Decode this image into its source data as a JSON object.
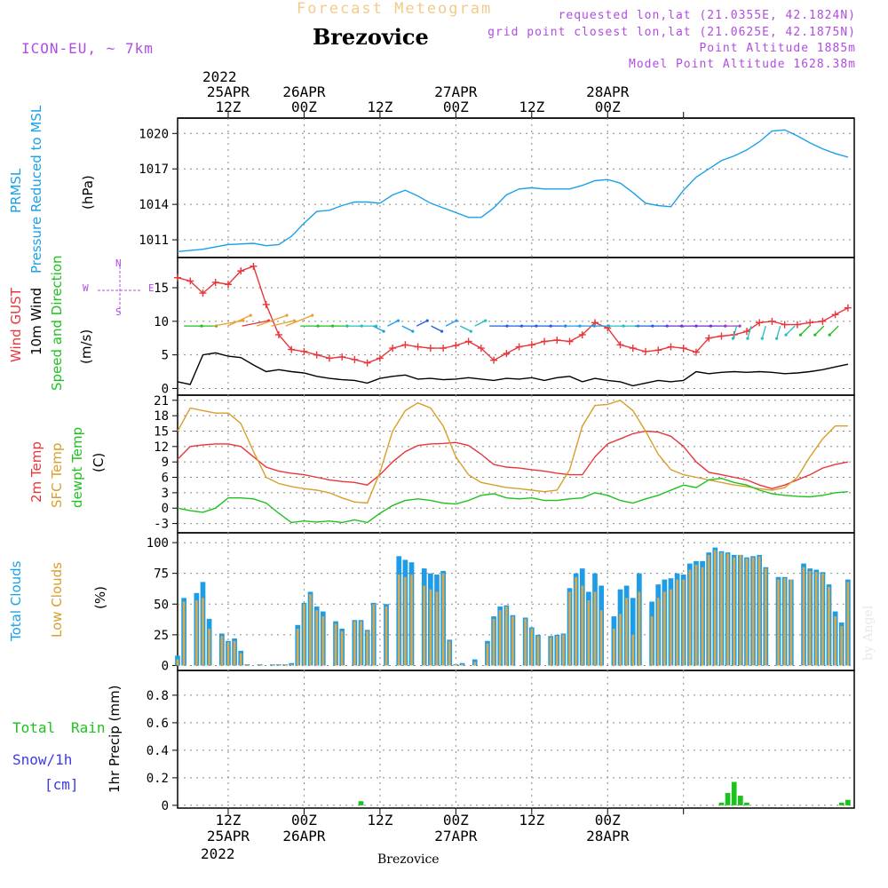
{
  "header": {
    "product": "Forecast Meteogram",
    "model": "ICON-EU, ~ 7km",
    "location": "Brezovice",
    "requested": "requested lon,lat (21.0355E, 42.1824N)",
    "grid_point": "grid point closest lon,lat (21.0625E, 42.1875N)",
    "point_altitude": "Point Altitude 1885m",
    "model_altitude": "Model Point Altitude 1628.38m",
    "watermark": "by Angel",
    "footer_location": "Brezovice"
  },
  "time_axis": {
    "top_year": "2022",
    "top_labels": [
      {
        "l1": "25APR",
        "l2": "12Z"
      },
      {
        "l1": "26APR",
        "l2": "00Z"
      },
      {
        "l1": "",
        "l2": "12Z"
      },
      {
        "l1": "27APR",
        "l2": "00Z"
      },
      {
        "l1": "",
        "l2": "12Z"
      },
      {
        "l1": "28APR",
        "l2": "00Z"
      }
    ],
    "bottom_labels": [
      {
        "l1": "12Z",
        "l2": "25APR"
      },
      {
        "l1": "00Z",
        "l2": "26APR"
      },
      {
        "l1": "12Z",
        "l2": ""
      },
      {
        "l1": "00Z",
        "l2": "27APR"
      },
      {
        "l1": "12Z",
        "l2": ""
      },
      {
        "l1": "00Z",
        "l2": "28APR"
      }
    ],
    "bottom_year": "2022"
  },
  "panels": {
    "pressure": {
      "label1": "PRMSL",
      "label2": "Pressure Reduced to MSL",
      "unit": "(hPa)"
    },
    "wind": {
      "label1": "Wind GUST",
      "label2": "10m Wind",
      "label3": "Speed and Direction",
      "unit": "(m/s)",
      "compass": "N",
      "compass_s": "S",
      "compass_w": "W",
      "compass_e": "E"
    },
    "temp": {
      "label1": "2m Temp",
      "label2": "SFC Temp",
      "label3": "dewpt Temp",
      "unit": "(C)"
    },
    "clouds": {
      "label1": "Total Clouds",
      "label2": "Low Clouds",
      "unit": "(%)"
    },
    "precip": {
      "label1": "Total",
      "label1b": "Rain",
      "label2": "Snow/1h",
      "label3": "[cm]",
      "unit": "1hr Precip (mm)"
    }
  },
  "chart_data": [
    {
      "type": "line",
      "title": "PRMSL Pressure Reduced to MSL",
      "ylabel": "(hPa)",
      "x_hours": [
        0,
        4,
        8,
        12,
        14,
        16,
        18,
        20,
        22,
        24,
        26,
        28,
        30,
        32,
        34,
        36,
        38,
        40,
        42,
        44,
        46,
        48,
        50,
        52,
        54,
        56,
        58,
        60,
        62,
        64,
        66,
        68,
        70,
        72,
        74,
        76,
        78,
        80,
        82,
        84,
        86,
        88,
        90,
        92,
        94,
        96,
        98,
        100,
        102,
        104,
        106
      ],
      "yticks": [
        1011,
        1014,
        1017,
        1020
      ],
      "ylim": [
        1009.5,
        1021.3
      ],
      "series": [
        {
          "name": "PRMSL",
          "color": "#1ba1e6",
          "values": [
            1010.0,
            1010.2,
            1010.6,
            1010.7,
            1010.5,
            1010.6,
            1011.3,
            1012.4,
            1013.4,
            1013.5,
            1013.9,
            1014.2,
            1014.2,
            1014.1,
            1014.8,
            1015.2,
            1014.7,
            1014.1,
            1013.7,
            1013.3,
            1012.9,
            1012.9,
            1013.7,
            1014.8,
            1015.3,
            1015.4,
            1015.3,
            1015.3,
            1015.3,
            1015.6,
            1016.0,
            1016.1,
            1015.8,
            1015.0,
            1014.1,
            1013.9,
            1013.8,
            1015.2,
            1016.3,
            1017.0,
            1017.7,
            1018.1,
            1018.6,
            1019.3,
            1020.2,
            1020.3,
            1019.8,
            1019.2,
            1018.7,
            1018.3,
            1018.0
          ]
        }
      ]
    },
    {
      "type": "line",
      "title": "Wind GUST / 10m Wind Speed and Direction",
      "ylabel": "(m/s)",
      "x_hours": [
        0,
        2,
        4,
        6,
        8,
        10,
        12,
        14,
        16,
        18,
        20,
        22,
        24,
        26,
        28,
        30,
        32,
        34,
        36,
        38,
        40,
        42,
        44,
        46,
        48,
        50,
        52,
        54,
        56,
        58,
        60,
        62,
        64,
        66,
        68,
        70,
        72,
        74,
        76,
        78,
        80,
        82,
        84,
        86,
        88,
        90,
        92,
        94,
        96,
        98,
        100,
        102,
        104,
        106
      ],
      "yticks": [
        0,
        5,
        10,
        15
      ],
      "ylim": [
        -1,
        19.5
      ],
      "series": [
        {
          "name": "Wind GUST",
          "color": "#e8363a",
          "values": [
            16.5,
            16.0,
            14.2,
            15.8,
            15.5,
            17.5,
            18.2,
            12.5,
            8.0,
            5.8,
            5.5,
            5.0,
            4.5,
            4.7,
            4.3,
            3.8,
            4.5,
            6.0,
            6.5,
            6.2,
            6.0,
            6.0,
            6.4,
            7.0,
            6.0,
            4.2,
            5.2,
            6.2,
            6.5,
            7.0,
            7.2,
            7.0,
            8.0,
            9.8,
            9.0,
            6.5,
            6.0,
            5.5,
            5.7,
            6.2,
            6.0,
            5.4,
            7.5,
            7.8,
            8.0,
            8.5,
            9.8,
            10.0,
            9.5,
            9.5,
            9.8,
            10.0,
            11.0,
            12.0
          ]
        },
        {
          "name": "10m Wind",
          "color": "#000000",
          "values": [
            1.0,
            0.6,
            5.0,
            5.3,
            4.8,
            4.6,
            3.5,
            2.5,
            2.8,
            2.5,
            2.3,
            1.8,
            1.5,
            1.3,
            1.2,
            0.8,
            1.5,
            1.8,
            2.0,
            1.4,
            1.5,
            1.3,
            1.4,
            1.6,
            1.4,
            1.2,
            1.5,
            1.4,
            1.6,
            1.2,
            1.6,
            1.8,
            1.0,
            1.5,
            1.2,
            1.0,
            0.4,
            0.8,
            1.2,
            1.0,
            1.2,
            2.5,
            2.2,
            2.4,
            2.5,
            2.4,
            2.5,
            2.4,
            2.2,
            2.3,
            2.5,
            2.8,
            3.2,
            3.6
          ]
        }
      ]
    },
    {
      "type": "line",
      "title": "2m Temp / SFC Temp / dewpt Temp",
      "ylabel": "(C)",
      "x_hours": [
        0,
        2,
        4,
        6,
        8,
        10,
        12,
        14,
        16,
        18,
        20,
        22,
        24,
        26,
        28,
        30,
        32,
        34,
        36,
        38,
        40,
        42,
        44,
        46,
        48,
        50,
        52,
        54,
        56,
        58,
        60,
        62,
        64,
        66,
        68,
        70,
        72,
        74,
        76,
        78,
        80,
        82,
        84,
        86,
        88,
        90,
        92,
        94,
        96,
        98,
        100,
        102,
        104,
        106
      ],
      "yticks": [
        -3,
        0,
        3,
        6,
        9,
        12,
        15,
        18,
        21
      ],
      "ylim": [
        -4.8,
        22
      ],
      "series": [
        {
          "name": "2m Temp",
          "color": "#e8363a",
          "values": [
            9.5,
            12.0,
            12.3,
            12.5,
            12.5,
            12.0,
            10.0,
            8.0,
            7.2,
            6.8,
            6.5,
            6.0,
            5.5,
            5.2,
            5.0,
            4.5,
            6.5,
            9.0,
            11.0,
            12.2,
            12.5,
            12.6,
            12.8,
            12.2,
            10.5,
            8.5,
            8.0,
            7.8,
            7.5,
            7.2,
            6.8,
            6.5,
            6.5,
            10.0,
            12.5,
            13.5,
            14.5,
            15.0,
            14.8,
            14.0,
            12.0,
            9.0,
            7.0,
            6.5,
            6.0,
            5.5,
            4.5,
            3.8,
            4.5,
            5.5,
            6.5,
            7.8,
            8.5,
            9.0
          ]
        },
        {
          "name": "SFC Temp",
          "color": "#d99e2b",
          "values": [
            15.0,
            19.5,
            19.0,
            18.5,
            18.5,
            16.5,
            11.0,
            6.0,
            4.8,
            4.2,
            3.8,
            3.5,
            3.0,
            2.0,
            1.2,
            1.0,
            7.0,
            15.0,
            19.0,
            20.5,
            19.5,
            16.0,
            10.0,
            6.5,
            5.0,
            4.5,
            4.0,
            3.8,
            3.5,
            3.2,
            3.5,
            7.5,
            16.0,
            20.0,
            20.2,
            21.0,
            19.0,
            15.0,
            10.5,
            7.5,
            6.5,
            6.0,
            5.5,
            5.0,
            4.5,
            4.2,
            3.8,
            3.5,
            4.0,
            6.0,
            10.0,
            13.5,
            16.0,
            16.0
          ]
        },
        {
          "name": "dewpt Temp",
          "color": "#1ec21e",
          "values": [
            0.0,
            -0.5,
            -0.8,
            0.0,
            2.0,
            2.0,
            1.8,
            1.0,
            -1.0,
            -2.8,
            -2.5,
            -2.7,
            -2.5,
            -2.8,
            -2.3,
            -2.8,
            -1.0,
            0.5,
            1.5,
            1.8,
            1.5,
            1.0,
            0.8,
            1.5,
            2.5,
            2.8,
            2.0,
            1.8,
            2.0,
            1.5,
            1.5,
            1.8,
            2.0,
            3.0,
            2.5,
            1.5,
            1.0,
            1.8,
            2.5,
            3.5,
            4.5,
            4.0,
            5.5,
            5.8,
            5.0,
            4.5,
            3.5,
            2.8,
            2.5,
            2.3,
            2.2,
            2.5,
            3.0,
            3.2
          ]
        }
      ]
    },
    {
      "type": "bar",
      "title": "Total Clouds / Low Clouds",
      "ylabel": "(%)",
      "x_hours": [
        0,
        1,
        3,
        4,
        5,
        7,
        8,
        9,
        10,
        11,
        13,
        15,
        16,
        17,
        18,
        19,
        20,
        21,
        22,
        23,
        25,
        26,
        28,
        29,
        30,
        31,
        33,
        35,
        36,
        37,
        39,
        40,
        41,
        42,
        43,
        44,
        45,
        47,
        49,
        50,
        51,
        52,
        53,
        55,
        56,
        57,
        59,
        60,
        61,
        62,
        63,
        64,
        65,
        66,
        67,
        69,
        70,
        71,
        72,
        73,
        75,
        76,
        77,
        78,
        79,
        80,
        81,
        82,
        83,
        84,
        85,
        86,
        87,
        88,
        89,
        90,
        91,
        92,
        93,
        95,
        96,
        97,
        99,
        100,
        101,
        102,
        103,
        104,
        105,
        106
      ],
      "yticks": [
        0,
        25,
        50,
        75,
        100
      ],
      "ylim": [
        -4,
        108
      ],
      "series": [
        {
          "name": "Total Clouds",
          "color": "#1e9de6",
          "values": [
            8,
            55,
            59,
            68,
            38,
            26,
            20,
            22,
            12,
            1,
            1,
            1,
            1,
            1,
            2,
            33,
            51,
            60,
            48,
            44,
            36,
            30,
            37,
            37,
            29,
            51,
            50,
            89,
            86,
            84,
            79,
            75,
            74,
            77,
            21,
            1,
            2,
            5,
            20,
            40,
            48,
            49,
            41,
            39,
            31,
            25,
            24,
            25,
            26,
            63,
            75,
            79,
            60,
            75,
            65,
            40,
            62,
            65,
            55,
            75,
            52,
            66,
            70,
            71,
            75,
            74,
            83,
            85,
            85,
            92,
            96,
            93,
            92,
            90,
            90,
            88,
            89,
            90,
            80,
            72,
            72,
            70,
            83,
            79,
            78,
            76,
            66,
            44,
            35,
            70
          ],
          "note": "approximate"
        },
        {
          "name": "Low Clouds",
          "color": "#d9a84a",
          "values": [
            5,
            52,
            53,
            55,
            30,
            24,
            19,
            20,
            10,
            1,
            1,
            1,
            1,
            1,
            1,
            30,
            50,
            58,
            45,
            40,
            34,
            28,
            36,
            36,
            28,
            50,
            48,
            74,
            72,
            74,
            65,
            62,
            60,
            75,
            20,
            1,
            1,
            3,
            18,
            38,
            45,
            48,
            40,
            38,
            30,
            24,
            23,
            24,
            25,
            60,
            72,
            65,
            53,
            60,
            45,
            30,
            42,
            55,
            25,
            60,
            40,
            55,
            60,
            62,
            70,
            70,
            78,
            82,
            80,
            90,
            94,
            92,
            91,
            88,
            90,
            87,
            88,
            89,
            79,
            70,
            71,
            70,
            80,
            77,
            76,
            75,
            64,
            40,
            32,
            68
          ]
        }
      ]
    },
    {
      "type": "bar",
      "title": "1hr Precip",
      "ylabel": "1hr Precip (mm)",
      "x_hours": [
        24,
        29,
        34,
        35,
        36,
        37,
        38,
        39,
        40,
        41,
        42,
        43,
        44,
        45,
        46
      ],
      "yticks": [
        0,
        0.2,
        0.4,
        0.6,
        0.8
      ],
      "ylim": [
        -0.02,
        0.98
      ],
      "series": [
        {
          "name": "Total Rain",
          "color": "#1ec21e",
          "values": [
            0,
            0.03,
            0,
            0,
            0,
            0,
            0,
            0,
            0,
            0,
            0,
            0,
            0,
            0,
            0
          ],
          "extra_hours": [
            86,
            87,
            88,
            89,
            90,
            105,
            106
          ],
          "extra_values": [
            0.02,
            0.09,
            0.17,
            0.07,
            0.02,
            0.02,
            0.04
          ]
        }
      ]
    }
  ]
}
